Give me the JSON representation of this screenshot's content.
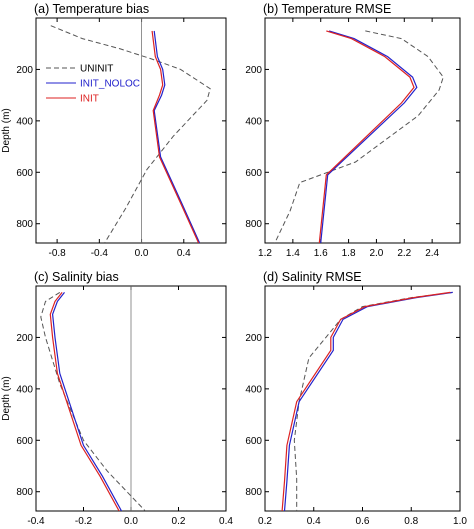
{
  "colors": {
    "uninit": "#555555",
    "init_noloc": "#2222cc",
    "init": "#dd2222",
    "zero_line": "#777777"
  },
  "chart_data": [
    {
      "type": "line",
      "title": "(a) Temperature bias",
      "ylabel": "Depth (m)",
      "xlim": [
        -1.0,
        0.8
      ],
      "ylim": [
        875,
        0
      ],
      "xticks": [
        -0.8,
        -0.4,
        0.0,
        0.4
      ],
      "xtick_labels": [
        "-0.8",
        "-0.4",
        "0.0",
        "0.4"
      ],
      "yticks": [
        200,
        400,
        600,
        800
      ],
      "ytick_labels": [
        "200",
        "400",
        "600",
        "800"
      ],
      "zero_line": 0.0,
      "legend": {
        "position": "top-left",
        "entries": [
          "UNINIT",
          "INIT_NOLOC",
          "INIT"
        ]
      },
      "series": [
        {
          "name": "UNINIT",
          "style": "dashed",
          "color_key": "uninit",
          "x": [
            -0.86,
            -0.56,
            -0.2,
            0.1,
            0.37,
            0.65,
            0.62,
            0.3,
            0.05,
            -0.15,
            -0.35
          ],
          "y": [
            30,
            80,
            120,
            160,
            200,
            275,
            320,
            460,
            590,
            740,
            875
          ]
        },
        {
          "name": "INIT_NOLOC",
          "style": "solid",
          "color_key": "init_noloc",
          "x": [
            0.12,
            0.15,
            0.2,
            0.22,
            0.19,
            0.12,
            0.18,
            0.38,
            0.55
          ],
          "y": [
            50,
            150,
            200,
            260,
            300,
            360,
            540,
            720,
            875
          ]
        },
        {
          "name": "INIT",
          "style": "solid",
          "color_key": "init",
          "x": [
            0.1,
            0.13,
            0.18,
            0.2,
            0.17,
            0.11,
            0.17,
            0.37,
            0.54
          ],
          "y": [
            50,
            150,
            200,
            260,
            300,
            360,
            540,
            720,
            875
          ]
        }
      ]
    },
    {
      "type": "line",
      "title": "(b) Temperature RMSE",
      "ylabel": "",
      "xlim": [
        1.2,
        2.6
      ],
      "ylim": [
        875,
        0
      ],
      "xticks": [
        1.2,
        1.4,
        1.6,
        1.8,
        2.0,
        2.2,
        2.4
      ],
      "xtick_labels": [
        "1.2",
        "1.4",
        "1.6",
        "1.8",
        "2.0",
        "2.2",
        "2.4"
      ],
      "yticks": [
        200,
        400,
        600,
        800
      ],
      "ytick_labels": [
        "200",
        "400",
        "600",
        "800"
      ],
      "series": [
        {
          "name": "UNINIT",
          "style": "dashed",
          "color_key": "uninit",
          "x": [
            1.92,
            2.18,
            2.37,
            2.48,
            2.45,
            2.3,
            1.85,
            1.45,
            1.38,
            1.27
          ],
          "y": [
            50,
            80,
            150,
            230,
            280,
            380,
            560,
            640,
            750,
            875
          ]
        },
        {
          "name": "INIT_NOLOC",
          "style": "solid",
          "color_key": "init_noloc",
          "x": [
            1.66,
            1.84,
            2.08,
            2.26,
            2.29,
            2.2,
            1.65,
            1.6
          ],
          "y": [
            50,
            80,
            150,
            230,
            270,
            330,
            610,
            875
          ]
        },
        {
          "name": "INIT",
          "style": "solid",
          "color_key": "init",
          "x": [
            1.64,
            1.82,
            2.06,
            2.24,
            2.27,
            2.18,
            1.64,
            1.59
          ],
          "y": [
            50,
            80,
            150,
            230,
            270,
            330,
            610,
            875
          ]
        }
      ]
    },
    {
      "type": "line",
      "title": "(c) Salinity bias",
      "ylabel": "Depth (m)",
      "xlim": [
        -0.4,
        0.4
      ],
      "ylim": [
        875,
        0
      ],
      "xticks": [
        -0.4,
        -0.2,
        0.0,
        0.2,
        0.4
      ],
      "xtick_labels": [
        "-0.4",
        "-0.2",
        "0.0",
        "0.2",
        "0.4"
      ],
      "yticks": [
        200,
        400,
        600,
        800
      ],
      "ytick_labels": [
        "200",
        "400",
        "600",
        "800"
      ],
      "zero_line": 0.0,
      "series": [
        {
          "name": "UNINIT",
          "style": "dashed",
          "color_key": "uninit",
          "x": [
            -0.3,
            -0.36,
            -0.38,
            -0.36,
            -0.3,
            -0.2,
            -0.1,
            0.06
          ],
          "y": [
            25,
            60,
            120,
            200,
            380,
            600,
            720,
            875
          ]
        },
        {
          "name": "INIT_NOLOC",
          "style": "solid",
          "color_key": "init_noloc",
          "x": [
            -0.28,
            -0.31,
            -0.33,
            -0.32,
            -0.3,
            -0.2,
            -0.12,
            -0.04
          ],
          "y": [
            25,
            60,
            110,
            200,
            340,
            620,
            740,
            875
          ]
        },
        {
          "name": "INIT",
          "style": "solid",
          "color_key": "init",
          "x": [
            -0.29,
            -0.32,
            -0.34,
            -0.33,
            -0.31,
            -0.21,
            -0.13,
            -0.05
          ],
          "y": [
            25,
            60,
            110,
            200,
            340,
            620,
            740,
            875
          ]
        }
      ]
    },
    {
      "type": "line",
      "title": "(d) Salinity RMSE",
      "ylabel": "",
      "xlim": [
        0.2,
        1.0
      ],
      "ylim": [
        875,
        0
      ],
      "xticks": [
        0.2,
        0.4,
        0.6,
        0.8,
        1.0
      ],
      "xtick_labels": [
        "0.2",
        "0.4",
        "0.6",
        "0.8",
        "1.0"
      ],
      "yticks": [
        200,
        400,
        600,
        800
      ],
      "ytick_labels": [
        "200",
        "400",
        "600",
        "800"
      ],
      "series": [
        {
          "name": "UNINIT",
          "style": "dashed",
          "color_key": "uninit",
          "x": [
            0.97,
            0.8,
            0.6,
            0.51,
            0.45,
            0.38,
            0.34,
            0.32,
            0.33,
            0.33
          ],
          "y": [
            25,
            45,
            80,
            130,
            200,
            280,
            450,
            600,
            750,
            875
          ]
        },
        {
          "name": "INIT_NOLOC",
          "style": "solid",
          "color_key": "init_noloc",
          "x": [
            0.97,
            0.82,
            0.62,
            0.52,
            0.48,
            0.48,
            0.34,
            0.3,
            0.29,
            0.28
          ],
          "y": [
            25,
            45,
            80,
            130,
            200,
            250,
            450,
            620,
            760,
            875
          ]
        },
        {
          "name": "INIT",
          "style": "solid",
          "color_key": "init",
          "x": [
            0.96,
            0.81,
            0.61,
            0.51,
            0.47,
            0.47,
            0.33,
            0.29,
            0.28,
            0.27
          ],
          "y": [
            25,
            45,
            80,
            130,
            200,
            250,
            450,
            620,
            760,
            875
          ]
        }
      ]
    }
  ]
}
